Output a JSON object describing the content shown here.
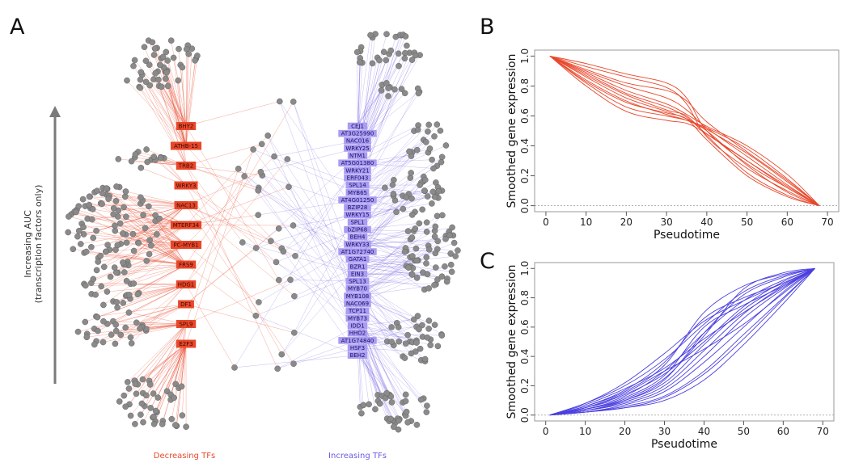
{
  "panels": {
    "a": "A",
    "b": "B",
    "c": "C"
  },
  "colors": {
    "decreasing": "#e8472a",
    "increasing": "#6a5be0",
    "node": "#8a8a8a",
    "node_stroke": "#555555",
    "arrow": "#7a7a7a"
  },
  "network": {
    "arrow_label_line1": "Increasing AUC",
    "arrow_label_line2": "(transcription factors only)",
    "decreasing_label": "Decreasing TFs",
    "increasing_label": "Increasing TFs",
    "decreasing_tfs": [
      "BHY2",
      "ATHB-15",
      "TRB2",
      "WRKY3",
      "NAC13",
      "MTERF34",
      "PC-MYB1",
      "FRS9",
      "HDG1",
      "DF1",
      "SPL9",
      "E2F3"
    ],
    "increasing_tfs": [
      "CEJ1",
      "AT3G25990",
      "NAC016",
      "WRKY25",
      "NTM1",
      "AT5G01380",
      "WRKY21",
      "ERF043",
      "SPL14",
      "MYB65",
      "AT4G01250",
      "BZIP28",
      "WRKY15",
      "SPL1",
      "bZIP68",
      "BEH4",
      "WRKY33",
      "AT1G72740",
      "GATA1",
      "BZR1",
      "EIN3",
      "SPL13",
      "MYB70",
      "MYB108",
      "NAC069",
      "TCP11",
      "MYB73",
      "IDD1",
      "HHO2",
      "AT1G74840",
      "HSF3",
      "BEH2"
    ]
  },
  "chart_data": [
    {
      "panel": "B",
      "type": "line",
      "title": "",
      "xlabel": "Pseudotime",
      "ylabel": "Smoothed gene expression",
      "xlim": [
        0,
        70
      ],
      "ylim": [
        0,
        1
      ],
      "xticks": [
        "0",
        "10",
        "20",
        "30",
        "40",
        "50",
        "60",
        "70"
      ],
      "yticks": [
        "0.0",
        "0.2",
        "0.4",
        "0.6",
        "0.8",
        "1.0"
      ],
      "color": "#e8472a",
      "series": [
        {
          "name": "s1",
          "x": [
            1,
            10,
            20,
            30,
            35,
            40,
            50,
            60,
            68
          ],
          "y": [
            1,
            0.95,
            0.88,
            0.82,
            0.72,
            0.5,
            0.28,
            0.12,
            0
          ]
        },
        {
          "name": "s2",
          "x": [
            1,
            10,
            20,
            30,
            35,
            40,
            50,
            60,
            68
          ],
          "y": [
            1,
            0.93,
            0.86,
            0.79,
            0.68,
            0.46,
            0.25,
            0.1,
            0
          ]
        },
        {
          "name": "s3",
          "x": [
            1,
            10,
            20,
            30,
            35,
            40,
            50,
            60,
            68
          ],
          "y": [
            1,
            0.88,
            0.75,
            0.66,
            0.59,
            0.48,
            0.3,
            0.13,
            0
          ]
        },
        {
          "name": "s4",
          "x": [
            1,
            10,
            20,
            30,
            35,
            40,
            50,
            60,
            68
          ],
          "y": [
            1,
            0.86,
            0.72,
            0.63,
            0.58,
            0.51,
            0.35,
            0.16,
            0
          ]
        },
        {
          "name": "s5",
          "x": [
            1,
            10,
            20,
            30,
            35,
            40,
            50,
            60,
            68
          ],
          "y": [
            1,
            0.82,
            0.66,
            0.6,
            0.57,
            0.52,
            0.38,
            0.18,
            0
          ]
        },
        {
          "name": "s6",
          "x": [
            1,
            10,
            20,
            30,
            35,
            40,
            50,
            60,
            68
          ],
          "y": [
            1,
            0.8,
            0.63,
            0.57,
            0.55,
            0.48,
            0.3,
            0.12,
            0
          ]
        },
        {
          "name": "s7",
          "x": [
            1,
            10,
            20,
            30,
            35,
            40,
            50,
            60,
            68
          ],
          "y": [
            1,
            0.84,
            0.7,
            0.61,
            0.57,
            0.5,
            0.27,
            0.09,
            0
          ]
        },
        {
          "name": "s8",
          "x": [
            1,
            10,
            20,
            30,
            35,
            40,
            50,
            60,
            68
          ],
          "y": [
            1,
            0.9,
            0.8,
            0.72,
            0.64,
            0.52,
            0.33,
            0.14,
            0
          ]
        },
        {
          "name": "s9",
          "x": [
            1,
            10,
            20,
            30,
            35,
            40,
            50,
            60,
            68
          ],
          "y": [
            1,
            0.91,
            0.82,
            0.77,
            0.7,
            0.56,
            0.36,
            0.17,
            0
          ]
        },
        {
          "name": "s10",
          "x": [
            1,
            10,
            20,
            30,
            35,
            40,
            50,
            60,
            68
          ],
          "y": [
            1,
            0.87,
            0.74,
            0.64,
            0.6,
            0.47,
            0.22,
            0.07,
            0
          ]
        },
        {
          "name": "s11",
          "x": [
            1,
            10,
            20,
            30,
            35,
            40,
            50,
            60,
            68
          ],
          "y": [
            1,
            0.83,
            0.69,
            0.62,
            0.58,
            0.44,
            0.2,
            0.06,
            0
          ]
        },
        {
          "name": "s12",
          "x": [
            1,
            10,
            20,
            30,
            35,
            40,
            50,
            60,
            68
          ],
          "y": [
            1,
            0.89,
            0.77,
            0.68,
            0.61,
            0.53,
            0.4,
            0.21,
            0
          ]
        }
      ]
    },
    {
      "panel": "C",
      "type": "line",
      "title": "",
      "xlabel": "Pseudotime",
      "ylabel": "Smoothed gene expression",
      "xlim": [
        0,
        70
      ],
      "ylim": [
        0,
        1
      ],
      "xticks": [
        "0",
        "10",
        "20",
        "30",
        "40",
        "50",
        "60",
        "70"
      ],
      "yticks": [
        "0.0",
        "0.2",
        "0.4",
        "0.6",
        "0.8",
        "1.0"
      ],
      "color": "#4b3fe0",
      "series": [
        {
          "name": "s1",
          "x": [
            1,
            10,
            20,
            30,
            40,
            50,
            60,
            68
          ],
          "y": [
            0,
            0.08,
            0.2,
            0.38,
            0.62,
            0.84,
            0.95,
            1
          ]
        },
        {
          "name": "s2",
          "x": [
            1,
            10,
            20,
            30,
            40,
            50,
            60,
            68
          ],
          "y": [
            0,
            0.06,
            0.16,
            0.34,
            0.7,
            0.88,
            0.96,
            1
          ]
        },
        {
          "name": "s3",
          "x": [
            1,
            10,
            20,
            30,
            40,
            50,
            60,
            68
          ],
          "y": [
            0,
            0.05,
            0.13,
            0.3,
            0.56,
            0.78,
            0.92,
            1
          ]
        },
        {
          "name": "s4",
          "x": [
            1,
            10,
            20,
            30,
            40,
            50,
            60,
            68
          ],
          "y": [
            0,
            0.04,
            0.1,
            0.22,
            0.48,
            0.72,
            0.89,
            1
          ]
        },
        {
          "name": "s5",
          "x": [
            1,
            10,
            20,
            30,
            40,
            50,
            60,
            68
          ],
          "y": [
            0,
            0.03,
            0.08,
            0.18,
            0.4,
            0.66,
            0.86,
            1
          ]
        },
        {
          "name": "s6",
          "x": [
            1,
            10,
            20,
            30,
            40,
            50,
            60,
            68
          ],
          "y": [
            0,
            0.02,
            0.06,
            0.13,
            0.3,
            0.55,
            0.8,
            1
          ]
        },
        {
          "name": "s7",
          "x": [
            1,
            10,
            20,
            30,
            40,
            50,
            60,
            68
          ],
          "y": [
            0,
            0.02,
            0.05,
            0.1,
            0.24,
            0.48,
            0.76,
            1
          ]
        },
        {
          "name": "s8",
          "x": [
            1,
            10,
            20,
            30,
            40,
            50,
            60,
            68
          ],
          "y": [
            0,
            0.05,
            0.15,
            0.3,
            0.45,
            0.62,
            0.83,
            1
          ]
        },
        {
          "name": "s9",
          "x": [
            1,
            10,
            20,
            30,
            40,
            50,
            60,
            68
          ],
          "y": [
            0,
            0.07,
            0.18,
            0.32,
            0.52,
            0.7,
            0.87,
            1
          ]
        },
        {
          "name": "s10",
          "x": [
            1,
            10,
            20,
            30,
            40,
            50,
            60,
            68
          ],
          "y": [
            0,
            0.03,
            0.1,
            0.24,
            0.56,
            0.82,
            0.94,
            1
          ]
        },
        {
          "name": "s11",
          "x": [
            1,
            10,
            20,
            30,
            40,
            50,
            60,
            68
          ],
          "y": [
            0,
            0.04,
            0.12,
            0.27,
            0.6,
            0.75,
            0.88,
            1
          ]
        },
        {
          "name": "s12",
          "x": [
            1,
            10,
            20,
            30,
            40,
            50,
            60,
            68
          ],
          "y": [
            0,
            0.02,
            0.07,
            0.16,
            0.36,
            0.6,
            0.84,
            1
          ]
        },
        {
          "name": "s13",
          "x": [
            1,
            10,
            20,
            30,
            40,
            50,
            60,
            68
          ],
          "y": [
            0,
            0.06,
            0.17,
            0.36,
            0.66,
            0.8,
            0.9,
            1
          ]
        },
        {
          "name": "s14",
          "x": [
            1,
            10,
            20,
            30,
            40,
            50,
            60,
            68
          ],
          "y": [
            0,
            0.03,
            0.09,
            0.2,
            0.44,
            0.69,
            0.88,
            1
          ]
        },
        {
          "name": "s15",
          "x": [
            1,
            10,
            20,
            30,
            40,
            50,
            60,
            68
          ],
          "y": [
            0,
            0.05,
            0.14,
            0.28,
            0.5,
            0.74,
            0.91,
            1
          ]
        },
        {
          "name": "s16",
          "x": [
            1,
            10,
            20,
            30,
            40,
            50,
            60,
            68
          ],
          "y": [
            0,
            0.08,
            0.22,
            0.42,
            0.64,
            0.78,
            0.9,
            1
          ]
        },
        {
          "name": "s17",
          "x": [
            1,
            10,
            20,
            30,
            40,
            50,
            60,
            68
          ],
          "y": [
            0,
            0.04,
            0.11,
            0.25,
            0.54,
            0.86,
            0.97,
            1
          ]
        },
        {
          "name": "s18",
          "x": [
            1,
            10,
            20,
            30,
            40,
            50,
            60,
            68
          ],
          "y": [
            0,
            0.02,
            0.05,
            0.12,
            0.28,
            0.52,
            0.79,
            1
          ]
        }
      ]
    }
  ]
}
